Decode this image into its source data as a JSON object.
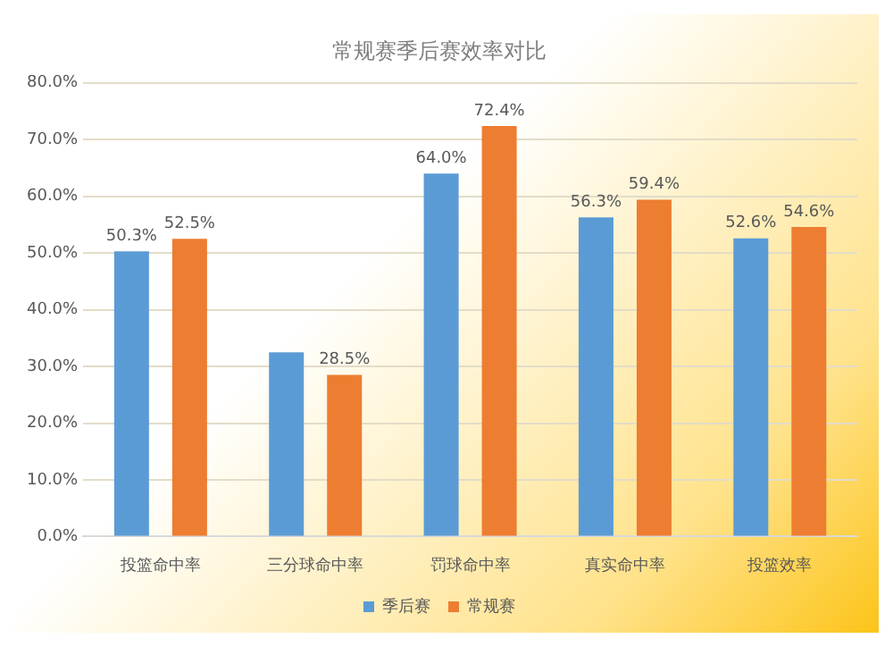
{
  "chart_data": {
    "type": "bar",
    "title": "常规赛季后赛效率对比",
    "categories": [
      "投篮命中率",
      "三分球命中率",
      "罚球命中率",
      "真实命中率",
      "投篮效率"
    ],
    "series": [
      {
        "name": "季后赛",
        "color": "#5b9bd5",
        "values": [
          50.3,
          32.5,
          64.0,
          56.3,
          52.6
        ],
        "value_labels": [
          "50.3%",
          null,
          "64.0%",
          "56.3%",
          "52.6%"
        ]
      },
      {
        "name": "常规赛",
        "color": "#ed7d31",
        "values": [
          52.5,
          28.5,
          72.4,
          59.4,
          54.6
        ],
        "value_labels": [
          "52.5%",
          "28.5%",
          "72.4%",
          "59.4%",
          "54.6%"
        ]
      }
    ],
    "ylim": [
      0,
      80
    ],
    "yticks": [
      {
        "value": 0,
        "label": "0.0%"
      },
      {
        "value": 10,
        "label": "10.0%"
      },
      {
        "value": 20,
        "label": "20.0%"
      },
      {
        "value": 30,
        "label": "30.0%"
      },
      {
        "value": 40,
        "label": "40.0%"
      },
      {
        "value": 50,
        "label": "50.0%"
      },
      {
        "value": 60,
        "label": "60.0%"
      },
      {
        "value": 70,
        "label": "70.0%"
      },
      {
        "value": 80,
        "label": "80.0%"
      }
    ],
    "grid": "y",
    "legend": "bottom"
  }
}
